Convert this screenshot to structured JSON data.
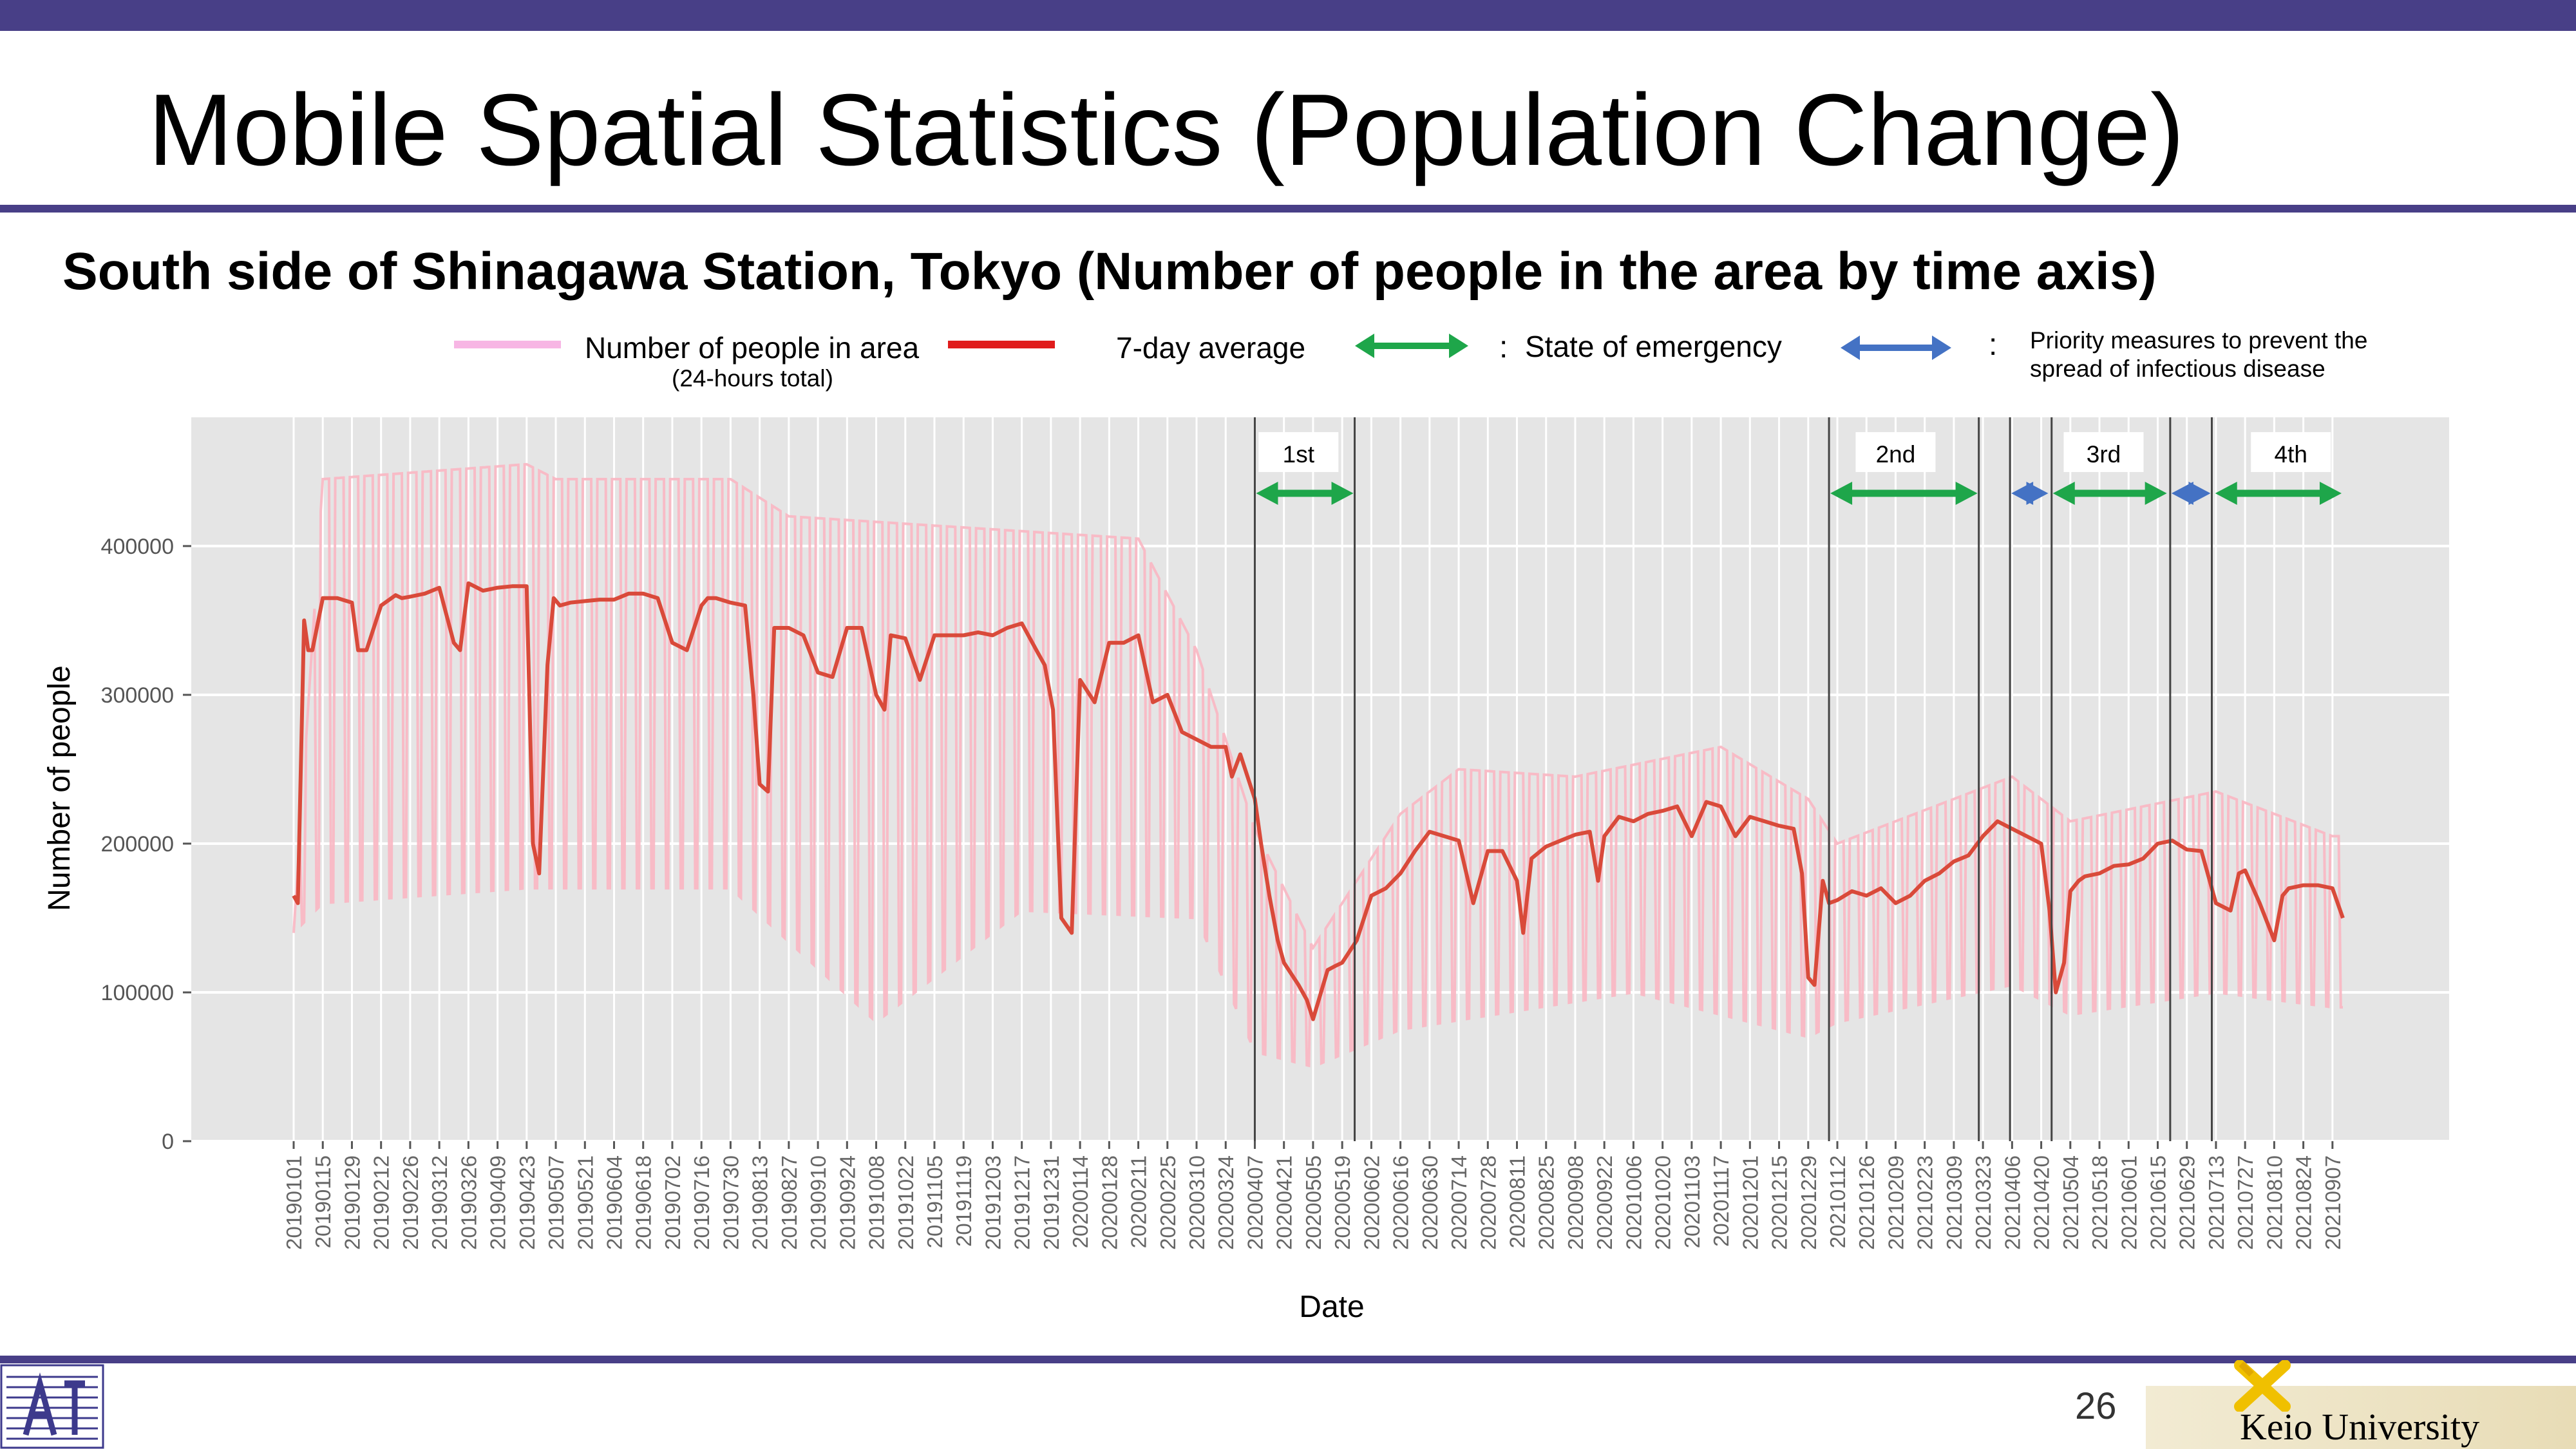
{
  "slide": {
    "title": "Mobile Spatial Statistics (Population Change)",
    "subtitle": "South side of Shinagawa Station, Tokyo (Number of people in the area by time axis)",
    "page_number": "26",
    "university": "Keio University"
  },
  "legend": {
    "people_label": "Number of people in area",
    "people_note": "(24-hours total)",
    "avg_label": "7-day average",
    "emergency_label": "State of emergency",
    "priority_label_1": "Priority measures to prevent the",
    "priority_label_2": "spread of infectious disease",
    "colon": ":"
  },
  "colors": {
    "daily": "#f9b6c2",
    "avg": "#d94a3a",
    "emergency": "#1ea64a",
    "priority": "#4472c4",
    "accent": "#483f87",
    "panel": "#e5e5e5",
    "legend_people": "#f7b6e4",
    "legend_avg": "#e01c1c"
  },
  "chart_data": {
    "type": "line",
    "xlabel": "Date",
    "ylabel": "Number of people",
    "ylim": [
      0,
      490000
    ],
    "yticks": [
      0,
      100000,
      200000,
      300000,
      400000
    ],
    "ytick_labels": [
      "0",
      "100000",
      "200000",
      "300000",
      "400000"
    ],
    "x_start": "20190101",
    "x_end": "20210912",
    "xticks": [
      "20190101",
      "20190115",
      "20190129",
      "20190212",
      "20190226",
      "20190312",
      "20190326",
      "20190409",
      "20190423",
      "20190507",
      "20190521",
      "20190604",
      "20190618",
      "20190702",
      "20190716",
      "20190730",
      "20190813",
      "20190827",
      "20190910",
      "20190924",
      "20191008",
      "20191022",
      "20191105",
      "20191119",
      "20191203",
      "20191217",
      "20191231",
      "20200114",
      "20200128",
      "20200211",
      "20200225",
      "20200310",
      "20200324",
      "20200407",
      "20200421",
      "20200505",
      "20200519",
      "20200602",
      "20200616",
      "20200630",
      "20200714",
      "20200728",
      "20200811",
      "20200825",
      "20200908",
      "20200922",
      "20201006",
      "20201020",
      "20201103",
      "20201117",
      "20201201",
      "20201215",
      "20201229",
      "20210112",
      "20210126",
      "20210209",
      "20210223",
      "20210309",
      "20210323",
      "20210406",
      "20210420",
      "20210504",
      "20210518",
      "20210601",
      "20210615",
      "20210629",
      "20210713",
      "20210727",
      "20210810",
      "20210824",
      "20210907"
    ],
    "grid": true,
    "legend_position": "top",
    "series": [
      {
        "name": "Number of people in area",
        "description_values": "daily values oscillate between weekday highs and weekend lows around the 7-day average",
        "weekday_high": [
          [
            "20190101",
            140000
          ],
          [
            "20190115",
            445000
          ],
          [
            "20190423",
            455000
          ],
          [
            "20190507",
            445000
          ],
          [
            "20190730",
            445000
          ],
          [
            "20190827",
            420000
          ],
          [
            "20191217",
            410000
          ],
          [
            "20200211",
            405000
          ],
          [
            "20200310",
            330000
          ],
          [
            "20200407",
            210000
          ],
          [
            "20200505",
            130000
          ],
          [
            "20200616",
            220000
          ],
          [
            "20200714",
            250000
          ],
          [
            "20200908",
            245000
          ],
          [
            "20201117",
            265000
          ],
          [
            "20201229",
            230000
          ],
          [
            "20210112",
            200000
          ],
          [
            "20210406",
            245000
          ],
          [
            "20210504",
            215000
          ],
          [
            "20210713",
            235000
          ],
          [
            "20210907",
            205000
          ]
        ],
        "weekend_low": [
          [
            "20190101",
            140000
          ],
          [
            "20190115",
            160000
          ],
          [
            "20190423",
            170000
          ],
          [
            "20190730",
            170000
          ],
          [
            "20191008",
            80000
          ],
          [
            "20191217",
            155000
          ],
          [
            "20200310",
            150000
          ],
          [
            "20200407",
            60000
          ],
          [
            "20200505",
            50000
          ],
          [
            "20200616",
            75000
          ],
          [
            "20201006",
            100000
          ],
          [
            "20201229",
            70000
          ],
          [
            "20210112",
            80000
          ],
          [
            "20210406",
            105000
          ],
          [
            "20210504",
            85000
          ],
          [
            "20210713",
            100000
          ],
          [
            "20210907",
            90000
          ]
        ]
      },
      {
        "name": "7-day average",
        "x": [
          "20190101",
          "20190103",
          "20190106",
          "20190108",
          "20190110",
          "20190115",
          "20190122",
          "20190129",
          "20190201",
          "20190205",
          "20190212",
          "20190219",
          "20190222",
          "20190226",
          "20190305",
          "20190312",
          "20190319",
          "20190322",
          "20190326",
          "20190402",
          "20190409",
          "20190416",
          "20190423",
          "20190426",
          "20190429",
          "20190503",
          "20190506",
          "20190509",
          "20190514",
          "20190521",
          "20190528",
          "20190604",
          "20190611",
          "20190618",
          "20190625",
          "20190702",
          "20190709",
          "20190716",
          "20190719",
          "20190723",
          "20190730",
          "20190806",
          "20190810",
          "20190813",
          "20190817",
          "20190820",
          "20190827",
          "20190903",
          "20190910",
          "20190917",
          "20190924",
          "20191001",
          "20191008",
          "20191012",
          "20191015",
          "20191022",
          "20191029",
          "20191105",
          "20191112",
          "20191119",
          "20191126",
          "20191203",
          "20191210",
          "20191217",
          "20191224",
          "20191228",
          "20200101",
          "20200105",
          "20200110",
          "20200114",
          "20200121",
          "20200128",
          "20200204",
          "20200211",
          "20200218",
          "20200225",
          "20200303",
          "20200310",
          "20200317",
          "20200324",
          "20200327",
          "20200331",
          "20200407",
          "20200410",
          "20200414",
          "20200418",
          "20200421",
          "20200428",
          "20200502",
          "20200505",
          "20200512",
          "20200516",
          "20200519",
          "20200526",
          "20200602",
          "20200609",
          "20200616",
          "20200623",
          "20200630",
          "20200707",
          "20200714",
          "20200721",
          "20200728",
          "20200804",
          "20200811",
          "20200814",
          "20200818",
          "20200825",
          "20200901",
          "20200908",
          "20200915",
          "20200919",
          "20200922",
          "20200929",
          "20201006",
          "20201013",
          "20201020",
          "20201027",
          "20201103",
          "20201110",
          "20201117",
          "20201124",
          "20201201",
          "20201208",
          "20201215",
          "20201222",
          "20201226",
          "20201229",
          "20210101",
          "20210105",
          "20210108",
          "20210112",
          "20210119",
          "20210126",
          "20210202",
          "20210209",
          "20210216",
          "20210223",
          "20210302",
          "20210309",
          "20210316",
          "20210323",
          "20210330",
          "20210406",
          "20210413",
          "20210420",
          "20210424",
          "20210427",
          "20210501",
          "20210504",
          "20210508",
          "20210511",
          "20210518",
          "20210525",
          "20210601",
          "20210608",
          "20210615",
          "20210622",
          "20210629",
          "20210706",
          "20210713",
          "20210720",
          "20210724",
          "20210727",
          "20210803",
          "20210810",
          "20210814",
          "20210817",
          "20210824",
          "20210831",
          "20210907",
          "20210912"
        ],
        "values": [
          165000,
          160000,
          350000,
          330000,
          330000,
          365000,
          365000,
          362000,
          330000,
          330000,
          360000,
          367000,
          365000,
          366000,
          368000,
          372000,
          335000,
          330000,
          375000,
          370000,
          372000,
          373000,
          373000,
          200000,
          180000,
          320000,
          365000,
          360000,
          362000,
          363000,
          364000,
          364000,
          368000,
          368000,
          365000,
          335000,
          330000,
          360000,
          365000,
          365000,
          362000,
          360000,
          300000,
          240000,
          235000,
          345000,
          345000,
          340000,
          315000,
          312000,
          345000,
          345000,
          300000,
          290000,
          340000,
          338000,
          310000,
          340000,
          340000,
          340000,
          342000,
          340000,
          345000,
          348000,
          330000,
          320000,
          290000,
          150000,
          140000,
          310000,
          295000,
          335000,
          335000,
          340000,
          295000,
          300000,
          275000,
          270000,
          265000,
          265000,
          245000,
          260000,
          230000,
          200000,
          165000,
          135000,
          120000,
          105000,
          95000,
          82000,
          115000,
          118000,
          120000,
          135000,
          165000,
          170000,
          180000,
          195000,
          208000,
          205000,
          202000,
          160000,
          195000,
          195000,
          175000,
          140000,
          190000,
          198000,
          202000,
          206000,
          208000,
          175000,
          205000,
          218000,
          215000,
          220000,
          222000,
          225000,
          205000,
          228000,
          225000,
          205000,
          218000,
          215000,
          212000,
          210000,
          180000,
          110000,
          105000,
          175000,
          160000,
          162000,
          168000,
          165000,
          170000,
          160000,
          165000,
          175000,
          180000,
          188000,
          192000,
          205000,
          215000,
          210000,
          205000,
          200000,
          155000,
          100000,
          120000,
          168000,
          175000,
          178000,
          180000,
          185000,
          186000,
          190000,
          200000,
          202000,
          196000,
          195000,
          160000,
          155000,
          180000,
          182000,
          160000,
          135000,
          165000,
          170000,
          172000,
          172000,
          170000,
          150000
        ]
      }
    ],
    "annotations": {
      "waves": [
        {
          "label": "1st",
          "date": "20200428"
        },
        {
          "label": "2nd",
          "date": "20210209"
        },
        {
          "label": "3rd",
          "date": "20210520"
        },
        {
          "label": "4th",
          "date": "20210818"
        }
      ],
      "state_of_emergency": [
        [
          "20200407",
          "20200525"
        ],
        [
          "20210108",
          "20210321"
        ],
        [
          "20210425",
          "20210620"
        ],
        [
          "20210712",
          "20210912"
        ]
      ],
      "priority_measures": [
        [
          "20210405",
          "20210424"
        ],
        [
          "20210621",
          "20210711"
        ]
      ],
      "vertical_lines": [
        "20200407",
        "20200525",
        "20210108",
        "20210321",
        "20210405",
        "20210425",
        "20210621",
        "20210711"
      ]
    }
  }
}
